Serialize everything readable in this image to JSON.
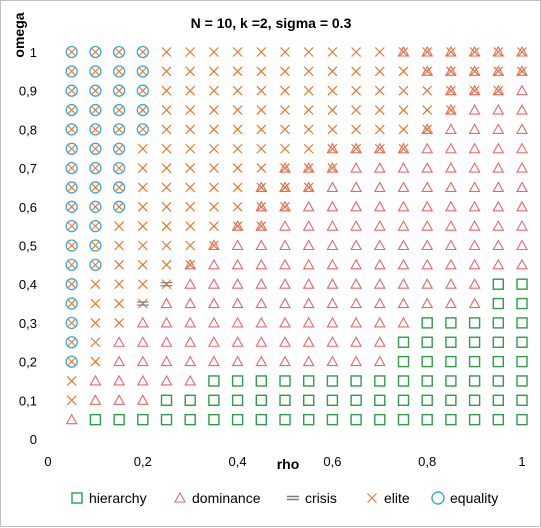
{
  "chart_data": {
    "type": "scatter",
    "title": "N = 10, k =2, sigma = 0.3",
    "xlabel": "rho",
    "ylabel": "omega",
    "xlim": [
      0,
      1
    ],
    "ylim": [
      0,
      1
    ],
    "x_ticks": [
      "0",
      "0,2",
      "0,4",
      "0,6",
      "0,8",
      "1"
    ],
    "y_ticks": [
      "0",
      "0,1",
      "0,2",
      "0,3",
      "0,4",
      "0,5",
      "0,6",
      "0,7",
      "0,8",
      "0,9",
      "1"
    ],
    "grid": false,
    "legend_position": "bottom",
    "colors": {
      "hierarchy": "#2e9c4a",
      "dominance": "#e8676a",
      "crisis": "#7a7a7a",
      "elite": "#e8782e",
      "equality": "#3fa7d6"
    },
    "series": [
      {
        "name": "hierarchy",
        "marker": "square",
        "points": []
      },
      {
        "name": "dominance",
        "marker": "triangle",
        "points": []
      },
      {
        "name": "crisis",
        "marker": "dash",
        "points": []
      },
      {
        "name": "elite",
        "marker": "x",
        "points": []
      },
      {
        "name": "equality",
        "marker": "circle-x",
        "points": []
      }
    ],
    "grid_data": {
      "x": [
        0.05,
        0.1,
        0.15,
        0.2,
        0.25,
        0.3,
        0.35,
        0.4,
        0.45,
        0.5,
        0.55,
        0.6,
        0.65,
        0.7,
        0.75,
        0.8,
        0.85,
        0.9,
        0.95,
        1.0
      ],
      "y_top_to_bottom": [
        1.0,
        0.95,
        0.9,
        0.85,
        0.8,
        0.75,
        0.7,
        0.65,
        0.6,
        0.55,
        0.5,
        0.45,
        0.4,
        0.35,
        0.3,
        0.25,
        0.2,
        0.15,
        0.1,
        0.05
      ],
      "codes": "H=hierarchy, D=dominance, C=crisis, E=elite, Q=equality, X=elite+dominance overlap",
      "rows": [
        "QQQQEEEEEEEEEEXXXXXX",
        "QQQQEEEEEEEEEEEXXXXX",
        "QQQQEEEEEEEEEEEEXXXD",
        "QQQQEEEEEEEEEEEEXDDD",
        "QQQQEEEEEEEEEEEXDDDD",
        "QQQEEEEEEEEXXXXDDDDD",
        "QQQEEEEEEXXXDDDDDDDD",
        "QQQEEEEEXXXDDDDDDDDD",
        "QQQEEEEEXXDDDDDDDDDD",
        "QQEEEEEXXDDDDDDDDDDD",
        "QQEEEEXDDDDDDDDDDDDD",
        "QQEEEXDDDDDDDDDDDDDD",
        "QEEECDDDDDDDDDDDDDHH",
        "QEECDDDDDDDDDDDDDDHH",
        "QEEDDDDDDDDDDDDHHHHH",
        "QEDDDDDDDDDDDDHHHHHH",
        "QEDDDDDDDDDDDDHHHHHH",
        "EDDDDDHHHHHHHHHHHHHH",
        "EDDDHHHHHHHHHHHHHHHH",
        "DHHHHHHHHHHHHHHHHHHH"
      ]
    }
  }
}
